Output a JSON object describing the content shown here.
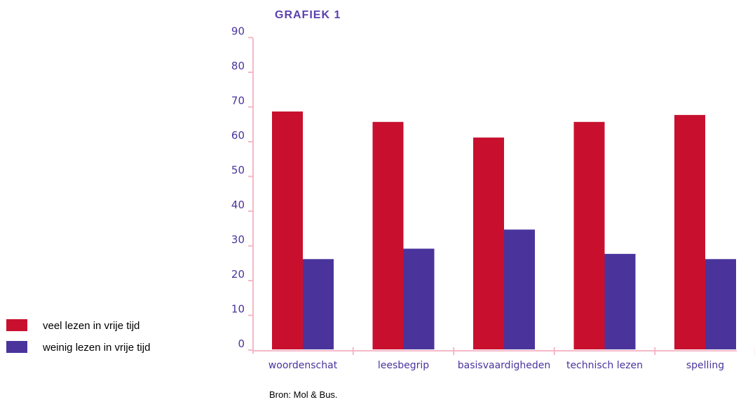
{
  "chart_data": {
    "type": "bar",
    "title": "GRAFIEK 1",
    "categories": [
      "woordenschat",
      "leesbegrip",
      "basisvaardigheden",
      "technisch lezen",
      "spelling"
    ],
    "series": [
      {
        "name": "veel lezen in vrije tijd",
        "values": [
          68.5,
          65.5,
          61.0,
          65.5,
          67.5
        ],
        "color": "#c8102e"
      },
      {
        "name": "weinig lezen in vrije tijd",
        "values": [
          26.0,
          29.0,
          34.5,
          27.5,
          26.0
        ],
        "color": "#4a349c"
      }
    ],
    "y_ticks": [
      0,
      10,
      20,
      30,
      40,
      50,
      60,
      70,
      80,
      90
    ],
    "ylim": [
      0,
      90
    ],
    "grid": false,
    "legend_position": "bottom-left",
    "axis_color": "#f4b8c8",
    "label_color": "#4a349c",
    "title_color": "#5b3fb0"
  },
  "source": "Bron: Mol & Bus."
}
